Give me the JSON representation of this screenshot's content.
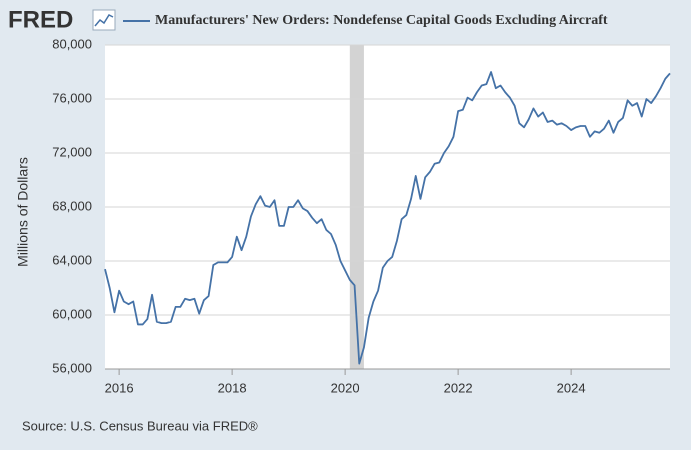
{
  "chart_data": {
    "type": "line",
    "logo": "FRED",
    "ylabel": "Millions of Dollars",
    "source": "Source: U.S. Census Bureau via FRED®",
    "x": [
      2015.75,
      2015.833,
      2015.917,
      2016,
      2016.083,
      2016.167,
      2016.25,
      2016.333,
      2016.417,
      2016.5,
      2016.583,
      2016.667,
      2016.75,
      2016.833,
      2016.917,
      2017,
      2017.083,
      2017.167,
      2017.25,
      2017.333,
      2017.417,
      2017.5,
      2017.583,
      2017.667,
      2017.75,
      2017.833,
      2017.917,
      2018,
      2018.083,
      2018.167,
      2018.25,
      2018.333,
      2018.417,
      2018.5,
      2018.583,
      2018.667,
      2018.75,
      2018.833,
      2018.917,
      2019,
      2019.083,
      2019.167,
      2019.25,
      2019.333,
      2019.417,
      2019.5,
      2019.583,
      2019.667,
      2019.75,
      2019.833,
      2019.917,
      2020,
      2020.083,
      2020.167,
      2020.25,
      2020.333,
      2020.417,
      2020.5,
      2020.583,
      2020.667,
      2020.75,
      2020.833,
      2020.917,
      2021,
      2021.083,
      2021.167,
      2021.25,
      2021.333,
      2021.417,
      2021.5,
      2021.583,
      2021.667,
      2021.75,
      2021.833,
      2021.917,
      2022,
      2022.083,
      2022.167,
      2022.25,
      2022.333,
      2022.417,
      2022.5,
      2022.583,
      2022.667,
      2022.75,
      2022.833,
      2022.917,
      2023,
      2023.083,
      2023.167,
      2023.25,
      2023.333,
      2023.417,
      2023.5,
      2023.583,
      2023.667,
      2023.75,
      2023.833,
      2023.917,
      2024,
      2024.083,
      2024.167,
      2024.25,
      2024.333,
      2024.417,
      2024.5,
      2024.583,
      2024.667,
      2024.75,
      2024.833,
      2024.917,
      2025,
      2025.083,
      2025.167,
      2025.25,
      2025.333,
      2025.417,
      2025.5,
      2025.583,
      2025.667,
      2025.75
    ],
    "series": [
      {
        "name": "Manufacturers' New Orders: Nondefense Capital Goods Excluding Aircraft",
        "color": "#4572a7",
        "values": [
          63400,
          62000,
          60200,
          61800,
          61000,
          60800,
          61000,
          59300,
          59300,
          59700,
          61500,
          59500,
          59400,
          59400,
          59500,
          60600,
          60600,
          61200,
          61100,
          61200,
          60100,
          61100,
          61400,
          63700,
          63900,
          63900,
          63900,
          64300,
          65800,
          64800,
          65800,
          67300,
          68200,
          68800,
          68100,
          68000,
          68500,
          66600,
          66600,
          68000,
          68000,
          68500,
          67900,
          67700,
          67200,
          66800,
          67100,
          66300,
          66000,
          65200,
          64000,
          63300,
          62600,
          62200,
          56400,
          57600,
          59800,
          61000,
          61800,
          63500,
          64000,
          64300,
          65500,
          67100,
          67400,
          68600,
          70300,
          68600,
          70200,
          70600,
          71200,
          71300,
          72000,
          72500,
          73200,
          75100,
          75200,
          76100,
          75900,
          76500,
          77000,
          77100,
          78000,
          76800,
          77000,
          76500,
          76100,
          75500,
          74200,
          73900,
          74500,
          75300,
          74700,
          75000,
          74300,
          74400,
          74100,
          74200,
          74000,
          73700,
          73900,
          74000,
          74000,
          73200,
          73600,
          73500,
          73800,
          74400,
          73500,
          74300,
          74600,
          75900,
          75500,
          75700,
          74700,
          76000,
          75700,
          76200,
          76800,
          77500,
          77900
        ]
      }
    ],
    "shaded_ranges": [
      [
        2020.083,
        2020.333
      ]
    ],
    "xlim": [
      2015.75,
      2025.75
    ],
    "xticks": [
      2016,
      2018,
      2020,
      2022,
      2024
    ],
    "ylim": [
      56000,
      80000
    ],
    "yticks": [
      {
        "value": 56000,
        "label": "56,000"
      },
      {
        "value": 60000,
        "label": "60,000"
      },
      {
        "value": 64000,
        "label": "64,000"
      },
      {
        "value": 68000,
        "label": "68,000"
      },
      {
        "value": 72000,
        "label": "72,000"
      },
      {
        "value": 76000,
        "label": "76,000"
      },
      {
        "value": 80000,
        "label": "80,000"
      }
    ],
    "grid": true
  }
}
